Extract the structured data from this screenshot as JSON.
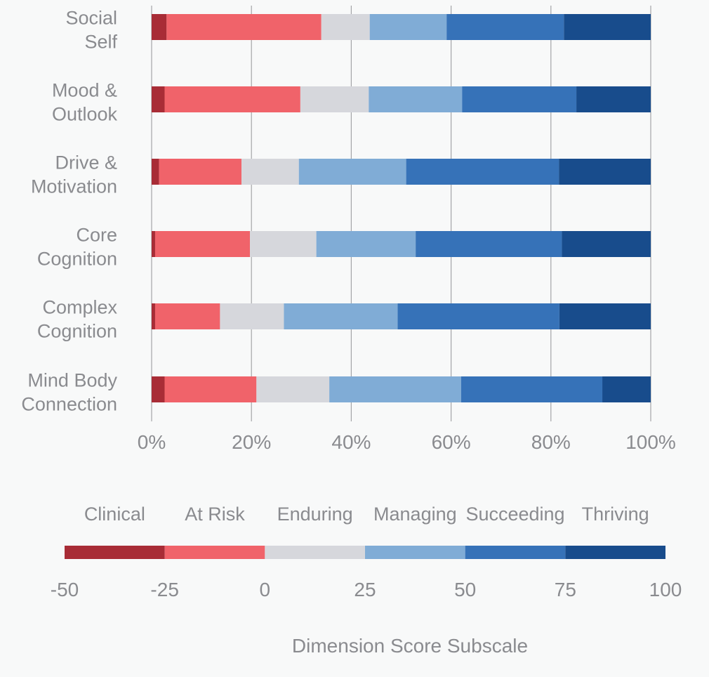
{
  "chart_data": {
    "type": "bar",
    "orientation": "horizontal",
    "stacked": true,
    "normalized": true,
    "categories": [
      [
        "Social",
        "Self"
      ],
      [
        "Mood &",
        "Outlook"
      ],
      [
        "Drive &",
        "Motivation"
      ],
      [
        "Core",
        "Cognition"
      ],
      [
        "Complex",
        "Cognition"
      ],
      [
        "Mind Body",
        "Connection"
      ]
    ],
    "series": [
      {
        "name": "Clinical",
        "color": "#a82c36",
        "values": [
          3,
          2.6,
          1.5,
          0.7,
          0.7,
          2.6
        ]
      },
      {
        "name": "At Risk",
        "color": "#f0636a",
        "values": [
          31,
          27.2,
          16.5,
          19,
          13,
          18.4
        ]
      },
      {
        "name": "Enduring",
        "color": "#d6d7dc",
        "values": [
          9.7,
          13.7,
          11.5,
          13.3,
          12.8,
          14.6
        ]
      },
      {
        "name": "Managing",
        "color": "#80acd6",
        "values": [
          15.4,
          18.7,
          21.5,
          19.9,
          22.8,
          26.4
        ]
      },
      {
        "name": "Succeeding",
        "color": "#3672b8",
        "values": [
          23.5,
          22.9,
          30.6,
          29.3,
          32.4,
          28.3
        ]
      },
      {
        "name": "Thriving",
        "color": "#184c8c",
        "values": [
          17.4,
          14.9,
          18.4,
          17.8,
          18.3,
          9.7
        ]
      }
    ],
    "x_axis": {
      "ticks": [
        "0%",
        "20%",
        "40%",
        "60%",
        "80%",
        "100%"
      ],
      "range": [
        0,
        100
      ],
      "grid": true
    },
    "subscale": {
      "title": "Dimension Score Subscale",
      "ticks": [
        "-50",
        "-25",
        "0",
        "25",
        "50",
        "75",
        "100"
      ],
      "bands": [
        "Clinical",
        "At Risk",
        "Enduring",
        "Managing",
        "Succeeding",
        "Thriving"
      ]
    }
  }
}
